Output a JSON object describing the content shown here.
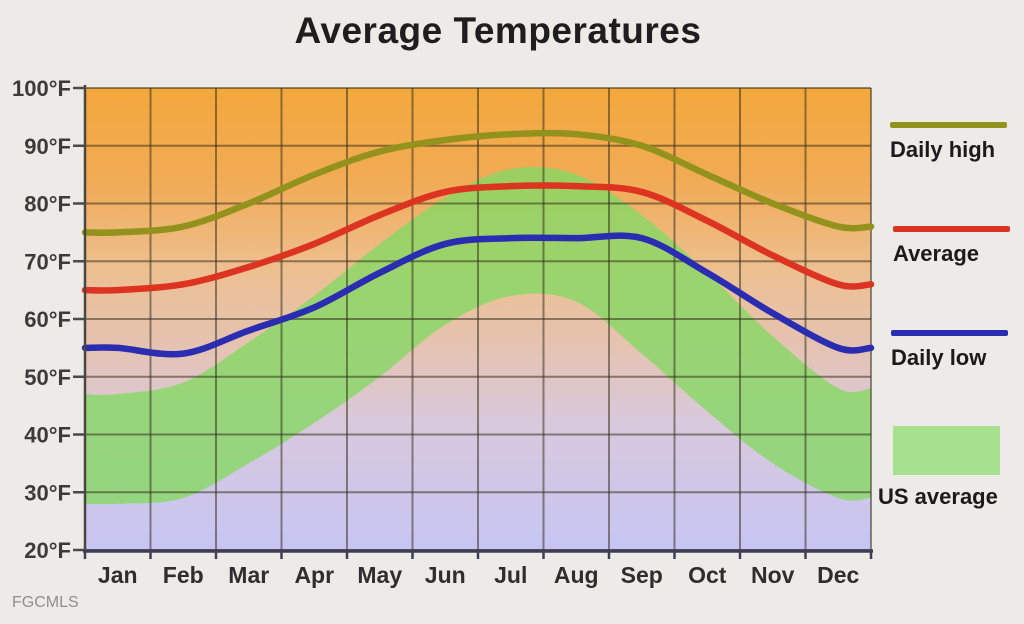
{
  "page": {
    "watermark": "FGCMLS"
  },
  "colors": {
    "page_bg": "#edebe8",
    "grid": "rgba(50,42,24,0.52)",
    "axis_x": "#3e3e56",
    "axis_y": "#4b4640",
    "tick_color": "#4a4a4a",
    "gradient": [
      [
        "0%",
        "#f3a83c"
      ],
      [
        "20%",
        "#f1ab55"
      ],
      [
        "40%",
        "#edc092"
      ],
      [
        "57%",
        "#e4c3b4"
      ],
      [
        "72%",
        "#d9c9dc"
      ],
      [
        "100%",
        "#c6c5f3"
      ]
    ]
  },
  "chart_data": {
    "type": "line",
    "title": "Average Temperatures",
    "xlabel": "",
    "ylabel": "",
    "ylim": [
      20,
      100
    ],
    "grid": true,
    "legend_position": "right",
    "categories": [
      "Jan",
      "Feb",
      "Mar",
      "Apr",
      "May",
      "Jun",
      "Jul",
      "Aug",
      "Sep",
      "Oct",
      "Nov",
      "Dec"
    ],
    "y_ticks": [
      {
        "value": 100,
        "label": "100°F"
      },
      {
        "value": 90,
        "label": "90°F"
      },
      {
        "value": 80,
        "label": "80°F"
      },
      {
        "value": 70,
        "label": "70°F"
      },
      {
        "value": 60,
        "label": "60°F"
      },
      {
        "value": 50,
        "label": "50°F"
      },
      {
        "value": 40,
        "label": "40°F"
      },
      {
        "value": 30,
        "label": "30°F"
      },
      {
        "value": 20,
        "label": "20°F"
      }
    ],
    "series": [
      {
        "name": "Daily high",
        "color": "#93921d",
        "values": [
          75,
          76,
          80,
          85,
          89,
          91,
          92,
          92,
          90,
          85,
          80,
          76
        ]
      },
      {
        "name": "Average",
        "color": "#dd3421",
        "values": [
          65,
          66,
          69,
          73,
          78,
          82,
          83,
          83,
          82,
          77,
          71,
          66
        ]
      },
      {
        "name": "Daily low",
        "color": "#2a2cb2",
        "values": [
          55,
          54,
          58,
          62,
          68,
          73,
          74,
          74,
          74,
          68,
          61,
          55
        ]
      }
    ],
    "band": {
      "name": "US average",
      "color": "rgba(134,216,100,0.8)",
      "high": [
        47,
        49,
        56,
        64,
        73,
        81,
        86,
        85,
        78,
        68,
        57,
        48
      ],
      "low": [
        28,
        29,
        35,
        42,
        50,
        59,
        64,
        63,
        54,
        44,
        35,
        29
      ]
    },
    "legend": [
      {
        "label": "Daily high",
        "swatch": "line",
        "color": "#93921d"
      },
      {
        "label": "Average",
        "swatch": "line",
        "color": "#dd3421"
      },
      {
        "label": "Daily low",
        "swatch": "line",
        "color": "#2a2cb2"
      },
      {
        "label": "US average",
        "swatch": "area",
        "color": "#a7e18f"
      }
    ]
  }
}
